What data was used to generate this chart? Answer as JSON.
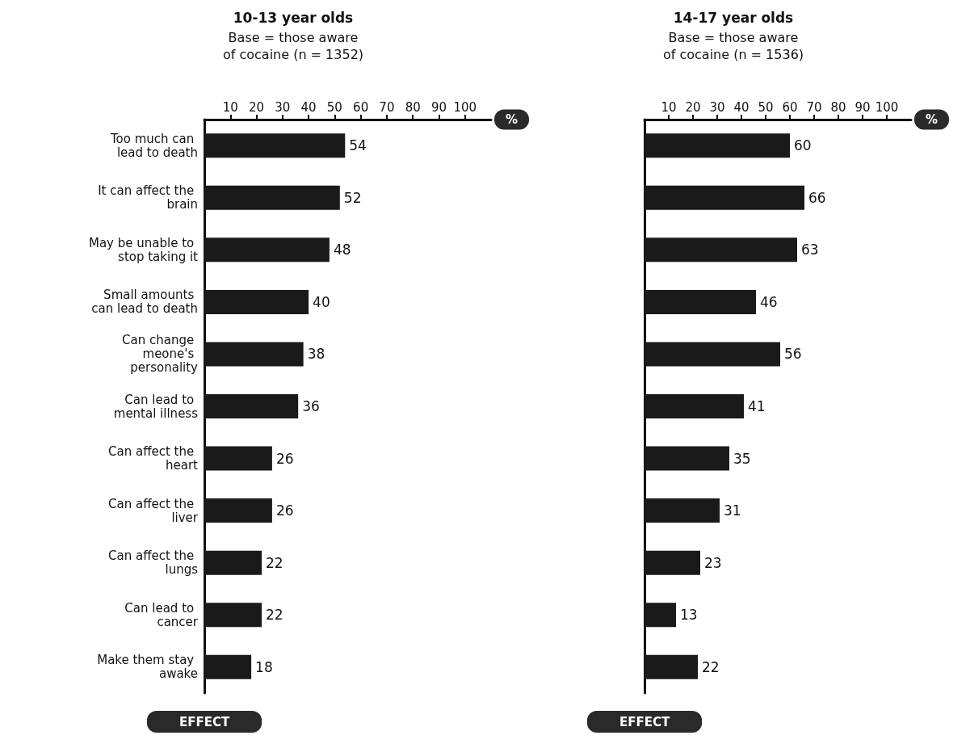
{
  "chart_data": [
    {
      "type": "bar",
      "orientation": "horizontal",
      "title": "10-13 year olds",
      "subtitle": "Base = those aware of cocaine (n = 1352)",
      "xlabel": "%",
      "ylabel": "EFFECT",
      "categories": [
        "Too much can lead to death",
        "It can affect the brain",
        "May be unable to stop taking it",
        "Small amounts can lead to death",
        "Can change meone's personality",
        "Can lead to mental illness",
        "Can affect the heart",
        "Can affect the liver",
        "Can affect the lungs",
        "Can lead to cancer",
        "Make them stay awake"
      ],
      "values": [
        54,
        52,
        48,
        40,
        38,
        36,
        26,
        26,
        22,
        22,
        18
      ],
      "color": "#1a1a1a",
      "xlim": [
        0,
        110
      ],
      "xticks": [
        10,
        20,
        30,
        40,
        50,
        60,
        70,
        80,
        90,
        100
      ],
      "data_labels": true
    },
    {
      "type": "bar",
      "orientation": "horizontal",
      "title": "14-17 year olds",
      "subtitle": "Base = those aware of cocaine (n = 1536)",
      "xlabel": "%",
      "ylabel": "EFFECT",
      "categories": [
        "Too much can lead to death",
        "It can affect the brain",
        "May be unable to stop taking it",
        "Small amounts can lead to death",
        "Can change meone's personality",
        "Can lead to mental illness",
        "Can affect the heart",
        "Can affect the liver",
        "Can affect the lungs",
        "Can lead to cancer",
        "Make them stay awake"
      ],
      "values": [
        60,
        66,
        63,
        46,
        56,
        41,
        35,
        31,
        23,
        13,
        22
      ],
      "color": "#1a1a1a",
      "xlim": [
        0,
        110
      ],
      "xticks": [
        10,
        20,
        30,
        40,
        50,
        60,
        70,
        80,
        90,
        100
      ],
      "data_labels": true,
      "tick_labels": "x"
    }
  ]
}
